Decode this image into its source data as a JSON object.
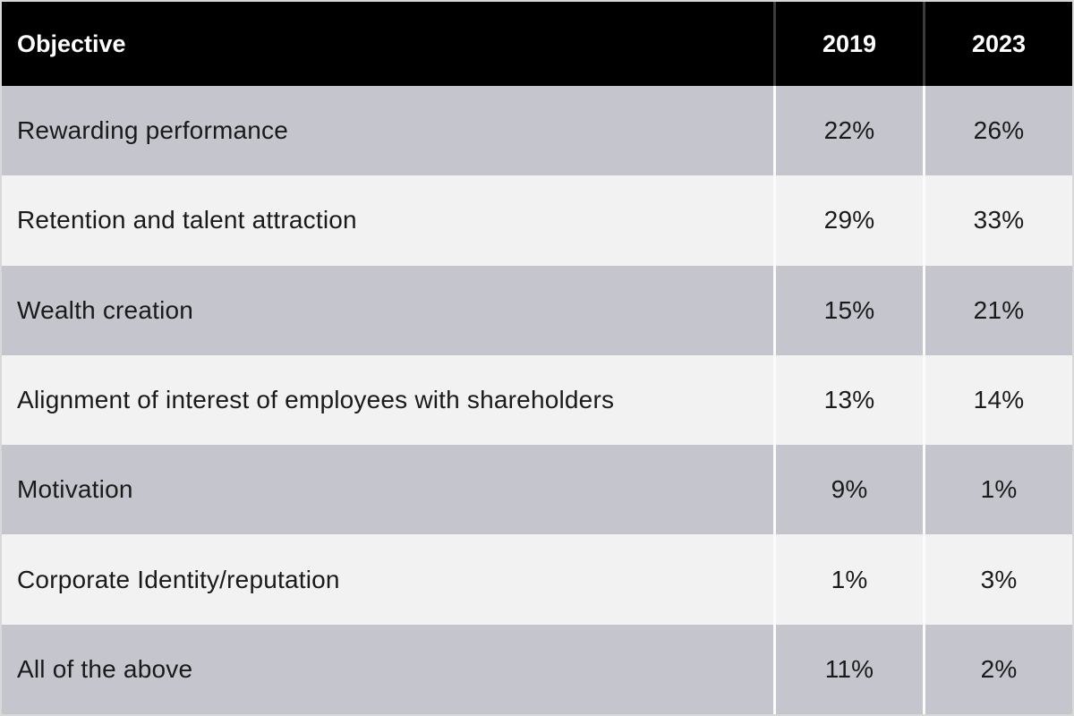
{
  "chart_data": {
    "type": "table",
    "columns": [
      "Objective",
      "2019",
      "2023"
    ],
    "rows": [
      [
        "Rewarding performance",
        "22%",
        "26%"
      ],
      [
        "Retention and talent attraction",
        "29%",
        "33%"
      ],
      [
        "Wealth creation",
        "15%",
        "21%"
      ],
      [
        "Alignment of interest of employees with shareholders",
        "13%",
        "14%"
      ],
      [
        "Motivation",
        "9%",
        "1%"
      ],
      [
        "Corporate Identity/reputation",
        "1%",
        "3%"
      ],
      [
        "All of the above",
        "11%",
        "2%"
      ]
    ],
    "layout": {
      "header_style": "black-background-white-bold-text",
      "row_striping": [
        "gray",
        "light",
        "gray",
        "light",
        "gray",
        "light",
        "gray"
      ],
      "value_alignment": "center",
      "objective_alignment": "left"
    }
  },
  "colors": {
    "header_bg": "#000000",
    "header_text": "#ffffff",
    "row_gray": "#c5c6cd",
    "row_light": "#f2f2f2",
    "column_divider_body": "#fbfbfb",
    "column_divider_header": "#3c3c3c",
    "outer_border": "#d8d8d8",
    "body_text": "#1a1a1a"
  }
}
